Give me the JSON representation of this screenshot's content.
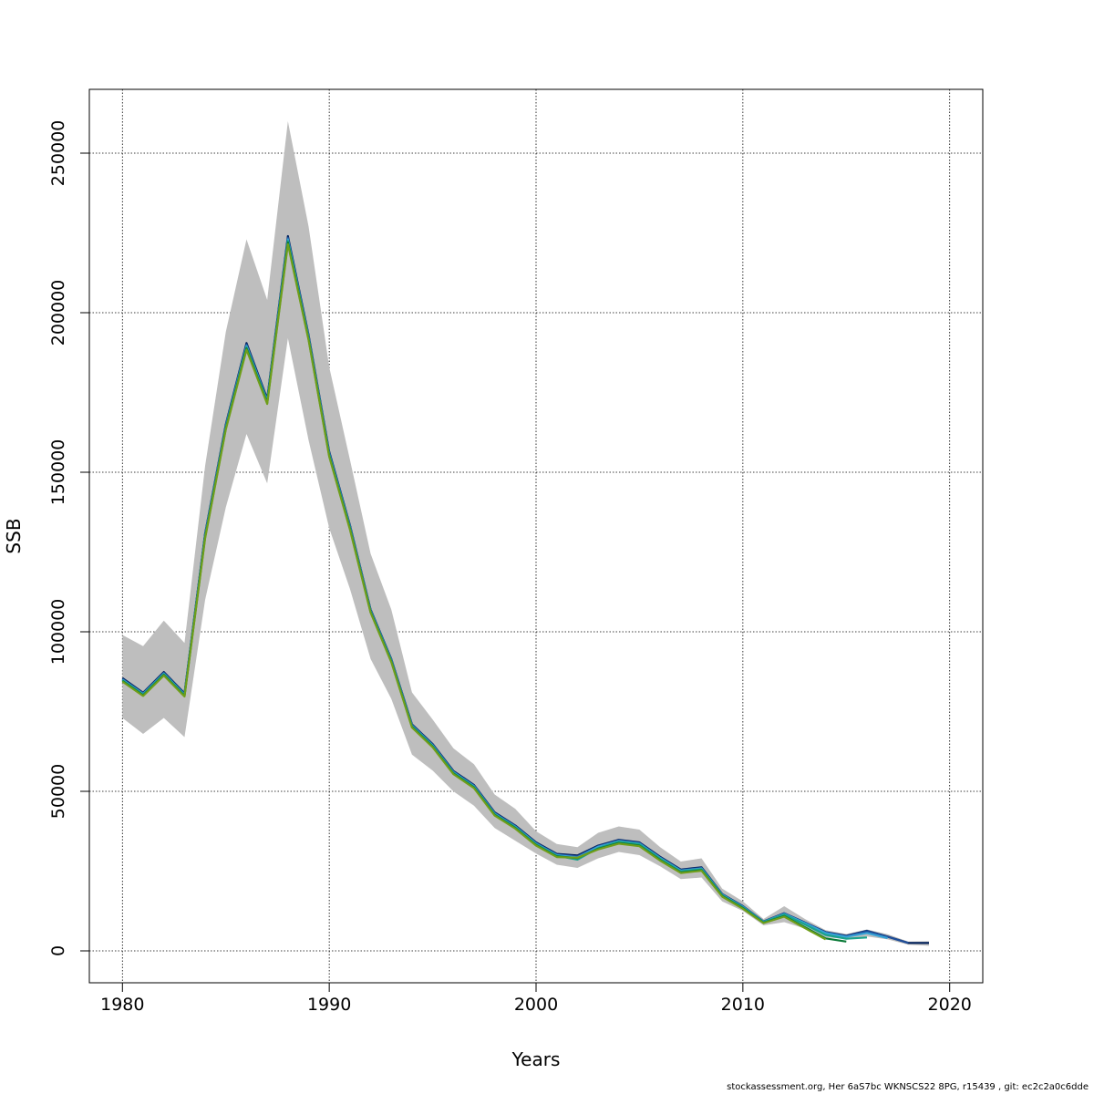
{
  "chart_data": {
    "type": "line",
    "title": "",
    "xlabel": "Years",
    "ylabel": "SSB",
    "xlim": [
      1978.4,
      2021.6
    ],
    "ylim": [
      -10000,
      270000
    ],
    "xticks": [
      1980,
      1990,
      2000,
      2010,
      2020
    ],
    "yticks": [
      0,
      50000,
      100000,
      150000,
      200000,
      250000
    ],
    "xtick_labels": [
      "1980",
      "1990",
      "2000",
      "2010",
      "2020"
    ],
    "ytick_labels": [
      "0",
      "50000",
      "100000",
      "150000",
      "200000",
      "250000"
    ],
    "grid": true,
    "confidence_band": {
      "color": "#bebebe",
      "x": [
        1980,
        1981,
        1982,
        1983,
        1984,
        1985,
        1986,
        1987,
        1988,
        1989,
        1990,
        1991,
        1992,
        1993,
        1994,
        1995,
        1996,
        1997,
        1998,
        1999,
        2000,
        2001,
        2002,
        2003,
        2004,
        2005,
        2006,
        2007,
        2008,
        2009,
        2010,
        2011,
        2012,
        2013,
        2014,
        2015,
        2016,
        2017,
        2018,
        2019
      ],
      "upper": [
        99000,
        95500,
        103500,
        96500,
        152000,
        194000,
        223000,
        204000,
        260000,
        227000,
        183000,
        154000,
        124500,
        107000,
        81000,
        72500,
        63500,
        58500,
        49000,
        44500,
        37500,
        33500,
        32500,
        37000,
        39000,
        38000,
        32500,
        28000,
        29000,
        19500,
        15500,
        10000,
        14000,
        10000,
        6500,
        5300,
        6700,
        5200,
        2900,
        3000
      ],
      "lower": [
        73000,
        68000,
        73000,
        67000,
        110000,
        139000,
        162000,
        146500,
        192000,
        160000,
        132500,
        113500,
        91500,
        79000,
        61500,
        56500,
        50000,
        45500,
        38500,
        34500,
        30500,
        27000,
        26000,
        29000,
        31000,
        30000,
        26500,
        22500,
        23000,
        15500,
        12500,
        8000,
        9000,
        7000,
        4200,
        3700,
        4500,
        3600,
        1900,
        1600
      ]
    },
    "series": [
      {
        "name": "",
        "color": "#00205b",
        "x": [
          1980,
          1981,
          1982,
          1983,
          1984,
          1985,
          1986,
          1987,
          1988,
          1989,
          1990,
          1991,
          1992,
          1993,
          1994,
          1995,
          1996,
          1997,
          1998,
          1999,
          2000,
          2001,
          2002,
          2003,
          2004,
          2005,
          2006,
          2007,
          2008,
          2009,
          2010,
          2011,
          2012,
          2013,
          2014,
          2015,
          2016,
          2017,
          2018,
          2019
        ],
        "values": [
          85500,
          80900,
          87400,
          80700,
          130800,
          165000,
          190500,
          173000,
          224000,
          193000,
          156500,
          133500,
          107000,
          91500,
          71000,
          64800,
          56400,
          52000,
          43400,
          39300,
          34000,
          30400,
          29900,
          33000,
          34800,
          34000,
          29500,
          25500,
          26200,
          17800,
          14000,
          9200,
          11800,
          8900,
          5900,
          4700,
          6300,
          4500,
          2500,
          2500
        ]
      },
      {
        "name": "",
        "color": "#1f4e99",
        "x": [
          1980,
          1981,
          1982,
          1983,
          1984,
          1985,
          1986,
          1987,
          1988,
          1989,
          1990,
          1991,
          1992,
          1993,
          1994,
          1995,
          1996,
          1997,
          1998,
          1999,
          2000,
          2001,
          2002,
          2003,
          2004,
          2005,
          2006,
          2007,
          2008,
          2009,
          2010,
          2011,
          2012,
          2013,
          2014,
          2015,
          2016,
          2017,
          2018
        ],
        "values": [
          85200,
          80700,
          87100,
          80500,
          130500,
          164600,
          190000,
          172600,
          223500,
          192600,
          156100,
          133200,
          106800,
          91300,
          70800,
          64600,
          56200,
          51800,
          43200,
          39100,
          33800,
          30200,
          29600,
          32800,
          34600,
          33800,
          29300,
          25300,
          26000,
          17700,
          13900,
          9100,
          11700,
          8800,
          5800,
          4600,
          6200,
          4400,
          2500
        ]
      },
      {
        "name": "",
        "color": "#36a2d6",
        "x": [
          1980,
          1981,
          1982,
          1983,
          1984,
          1985,
          1986,
          1987,
          1988,
          1989,
          1990,
          1991,
          1992,
          1993,
          1994,
          1995,
          1996,
          1997,
          1998,
          1999,
          2000,
          2001,
          2002,
          2003,
          2004,
          2005,
          2006,
          2007,
          2008,
          2009,
          2010,
          2011,
          2012,
          2013,
          2014,
          2015,
          2016,
          2017
        ],
        "values": [
          85000,
          80500,
          86900,
          80300,
          130200,
          164300,
          189600,
          172300,
          223000,
          192300,
          155800,
          133000,
          106600,
          91100,
          70600,
          64400,
          56000,
          51600,
          43000,
          38900,
          33600,
          30000,
          29300,
          32600,
          34400,
          33600,
          29100,
          25100,
          25800,
          17600,
          13800,
          9100,
          11600,
          8700,
          5600,
          4400,
          5600,
          4000
        ]
      },
      {
        "name": "",
        "color": "#1aa38c",
        "x": [
          1980,
          1981,
          1982,
          1983,
          1984,
          1985,
          1986,
          1987,
          1988,
          1989,
          1990,
          1991,
          1992,
          1993,
          1994,
          1995,
          1996,
          1997,
          1998,
          1999,
          2000,
          2001,
          2002,
          2003,
          2004,
          2005,
          2006,
          2007,
          2008,
          2009,
          2010,
          2011,
          2012,
          2013,
          2014,
          2015,
          2016
        ],
        "values": [
          84800,
          80300,
          86700,
          80100,
          129900,
          164000,
          189200,
          172000,
          222500,
          192000,
          155500,
          132700,
          106400,
          90900,
          70400,
          64200,
          55800,
          51400,
          42800,
          38700,
          33400,
          29800,
          28600,
          32200,
          34200,
          33400,
          28900,
          24900,
          25600,
          17400,
          13600,
          9000,
          11400,
          8300,
          5000,
          3800,
          4200
        ]
      },
      {
        "name": "",
        "color": "#0a7a37",
        "x": [
          1980,
          1981,
          1982,
          1983,
          1984,
          1985,
          1986,
          1987,
          1988,
          1989,
          1990,
          1991,
          1992,
          1993,
          1994,
          1995,
          1996,
          1997,
          1998,
          1999,
          2000,
          2001,
          2002,
          2003,
          2004,
          2005,
          2006,
          2007,
          2008,
          2009,
          2010,
          2011,
          2012,
          2013,
          2014,
          2015
        ],
        "values": [
          84600,
          80100,
          86500,
          79900,
          129600,
          163700,
          188800,
          171700,
          222000,
          191700,
          155200,
          132400,
          106200,
          90700,
          70200,
          64000,
          55600,
          51200,
          42600,
          38500,
          33200,
          29600,
          29100,
          32000,
          33800,
          33000,
          28500,
          24600,
          25300,
          17200,
          13400,
          8800,
          10900,
          7400,
          3900,
          2900
        ]
      },
      {
        "name": "",
        "color": "#6f9e1a",
        "x": [
          1980,
          1981,
          1982,
          1983,
          1984,
          1985,
          1986,
          1987,
          1988,
          1989,
          1990,
          1991,
          1992,
          1993,
          1994,
          1995,
          1996,
          1997,
          1998,
          1999,
          2000,
          2001,
          2002,
          2003,
          2004,
          2005,
          2006,
          2007,
          2008,
          2009,
          2010,
          2011,
          2012,
          2013,
          2014
        ],
        "values": [
          84400,
          79900,
          86300,
          79700,
          129300,
          163400,
          188400,
          171400,
          221500,
          191400,
          154900,
          132100,
          106000,
          90500,
          70000,
          63800,
          55400,
          51000,
          42400,
          38300,
          33000,
          29400,
          29200,
          31800,
          33600,
          32800,
          28300,
          24400,
          25100,
          17000,
          13200,
          8700,
          10700,
          7100,
          3600
        ]
      }
    ]
  },
  "footer": "stockassessment.org, Her 6aS7bc WKNSCS22 8PG, r15439 , git: ec2c2a0c6dde"
}
